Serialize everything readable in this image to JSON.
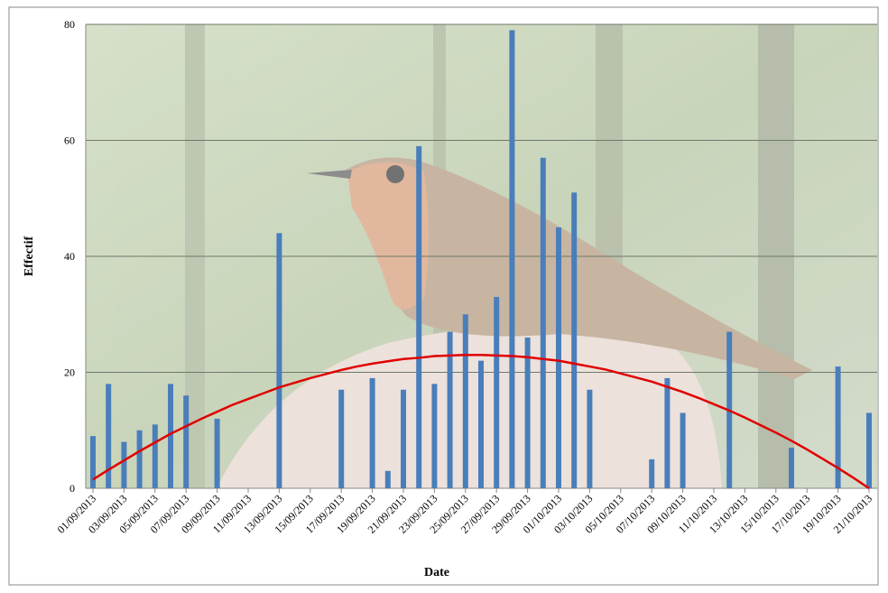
{
  "chart_data": {
    "type": "bar",
    "x_label": "Date",
    "y_label": "Effectif",
    "categories": [
      "01/09/2013",
      null,
      "03/09/2013",
      null,
      "05/09/2013",
      null,
      "07/09/2013",
      null,
      "09/09/2013",
      null,
      "11/09/2013",
      null,
      "13/09/2013",
      null,
      "15/09/2013",
      null,
      "17/09/2013",
      null,
      "19/09/2013",
      null,
      "21/09/2013",
      null,
      "23/09/2013",
      null,
      "25/09/2013",
      null,
      "27/09/2013",
      null,
      "29/09/2013",
      null,
      "01/10/2013",
      null,
      "03/10/2013",
      null,
      "05/10/2013",
      null,
      "07/10/2013",
      null,
      "09/10/2013",
      null,
      "11/10/2013",
      null,
      "13/10/2013",
      null,
      "15/10/2013",
      null,
      "17/10/2013",
      null,
      "19/10/2013",
      null,
      "21/10/2013"
    ],
    "values": [
      9,
      18,
      8,
      10,
      11,
      18,
      16,
      0,
      12,
      0,
      0,
      0,
      44,
      0,
      0,
      0,
      17,
      0,
      19,
      3,
      17,
      59,
      18,
      27,
      30,
      22,
      33,
      79,
      26,
      57,
      45,
      51,
      17,
      0,
      0,
      0,
      5,
      19,
      13,
      0,
      0,
      27,
      0,
      0,
      0,
      7,
      0,
      0,
      21,
      0,
      13
    ],
    "color": "#4a7ebb",
    "trendline": {
      "color": "#e00000",
      "values": [
        1.5,
        3.2,
        4.8,
        6.4,
        7.9,
        9.4,
        10.7,
        12.0,
        13.2,
        14.4,
        15.4,
        16.4,
        17.4,
        18.2,
        19.0,
        19.7,
        20.4,
        21.0,
        21.5,
        21.9,
        22.3,
        22.5,
        22.8,
        22.9,
        23.0,
        23.0,
        22.9,
        22.8,
        22.6,
        22.3,
        22.0,
        21.5,
        21.0,
        20.5,
        19.8,
        19.1,
        18.4,
        17.5,
        16.6,
        15.6,
        14.5,
        13.4,
        12.2,
        10.9,
        9.6,
        8.2,
        6.7,
        5.1,
        3.5,
        1.8,
        0.0
      ]
    },
    "ylim": [
      0,
      80
    ],
    "yticks": [
      0,
      20,
      40,
      60,
      80
    ],
    "grid": true
  }
}
